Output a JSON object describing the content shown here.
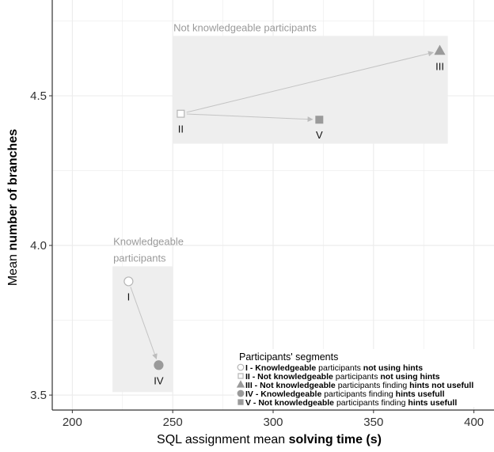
{
  "chart_data": {
    "type": "scatter",
    "title": "",
    "xlabel_parts": [
      {
        "text": "SQL assignment mean ",
        "bold": false
      },
      {
        "text": "solving time (s)",
        "bold": true
      }
    ],
    "ylabel_parts": [
      {
        "text": "Mean ",
        "bold": false
      },
      {
        "text": "number of branches",
        "bold": true
      }
    ],
    "xlim": [
      190,
      410
    ],
    "ylim": [
      3.45,
      4.82
    ],
    "x_ticks": [
      200,
      250,
      300,
      350,
      400
    ],
    "y_ticks": [
      3.5,
      4.0,
      4.5
    ],
    "y_tick_labels": [
      "3.5",
      "4.0",
      "4.5"
    ],
    "x_minor_ticks": [
      225,
      275,
      325,
      375
    ],
    "y_minor_ticks": [
      3.75,
      4.25,
      4.75
    ],
    "grid": true,
    "colors": {
      "grid": "#ebebeb",
      "group_fill": "#eeeeee",
      "group_label": "#9a9a9a",
      "marker_fill": "#9a9a9a",
      "marker_stroke": "#b5b5b5",
      "arrow": "#c4c4c4"
    },
    "groups": [
      {
        "label_lines": [
          "Not knowledgeable participants"
        ],
        "x_range": [
          250,
          387
        ],
        "y_range": [
          4.34,
          4.7
        ]
      },
      {
        "label_lines": [
          "Knowledgeable",
          "participants"
        ],
        "x_range": [
          220,
          250
        ],
        "y_range": [
          3.51,
          3.93
        ]
      }
    ],
    "points": [
      {
        "id": "I",
        "label": "I",
        "x": 228,
        "y": 3.88,
        "marker": "circle-open"
      },
      {
        "id": "II",
        "label": "II",
        "x": 254,
        "y": 4.44,
        "marker": "square-open"
      },
      {
        "id": "III",
        "label": "III",
        "x": 383,
        "y": 4.65,
        "marker": "triangle-filled"
      },
      {
        "id": "IV",
        "label": "IV",
        "x": 243,
        "y": 3.6,
        "marker": "circle-filled"
      },
      {
        "id": "V",
        "label": "V",
        "x": 323,
        "y": 4.42,
        "marker": "square-filled"
      }
    ],
    "arrows": [
      {
        "from": "II",
        "to": "III"
      },
      {
        "from": "II",
        "to": "V"
      },
      {
        "from": "I",
        "to": "IV"
      }
    ],
    "legend": {
      "title": "Participants' segments",
      "position": "bottom-right",
      "entries": [
        {
          "marker": "circle-open",
          "parts": [
            {
              "text": "I - ",
              "bold": true
            },
            {
              "text": "Knowledgeable",
              "bold": true
            },
            {
              "text": " participants ",
              "bold": false
            },
            {
              "text": "not using hints",
              "bold": true
            }
          ]
        },
        {
          "marker": "square-open",
          "parts": [
            {
              "text": "II - ",
              "bold": true
            },
            {
              "text": "Not knowledgeable",
              "bold": true
            },
            {
              "text": " participants ",
              "bold": false
            },
            {
              "text": "not using hints",
              "bold": true
            }
          ]
        },
        {
          "marker": "triangle-filled",
          "parts": [
            {
              "text": "III - ",
              "bold": true
            },
            {
              "text": "Not knowledgeable",
              "bold": true
            },
            {
              "text": " participants finding ",
              "bold": false
            },
            {
              "text": "hints not usefull",
              "bold": true
            }
          ]
        },
        {
          "marker": "circle-filled",
          "parts": [
            {
              "text": "IV - ",
              "bold": true
            },
            {
              "text": "Knowledgeable",
              "bold": true
            },
            {
              "text": " participants finding ",
              "bold": false
            },
            {
              "text": "hints usefull",
              "bold": true
            }
          ]
        },
        {
          "marker": "square-filled",
          "parts": [
            {
              "text": "V - ",
              "bold": true
            },
            {
              "text": "Not knowledgeable",
              "bold": true
            },
            {
              "text": " participants finding ",
              "bold": false
            },
            {
              "text": "hints usefull",
              "bold": true
            }
          ]
        }
      ]
    }
  }
}
